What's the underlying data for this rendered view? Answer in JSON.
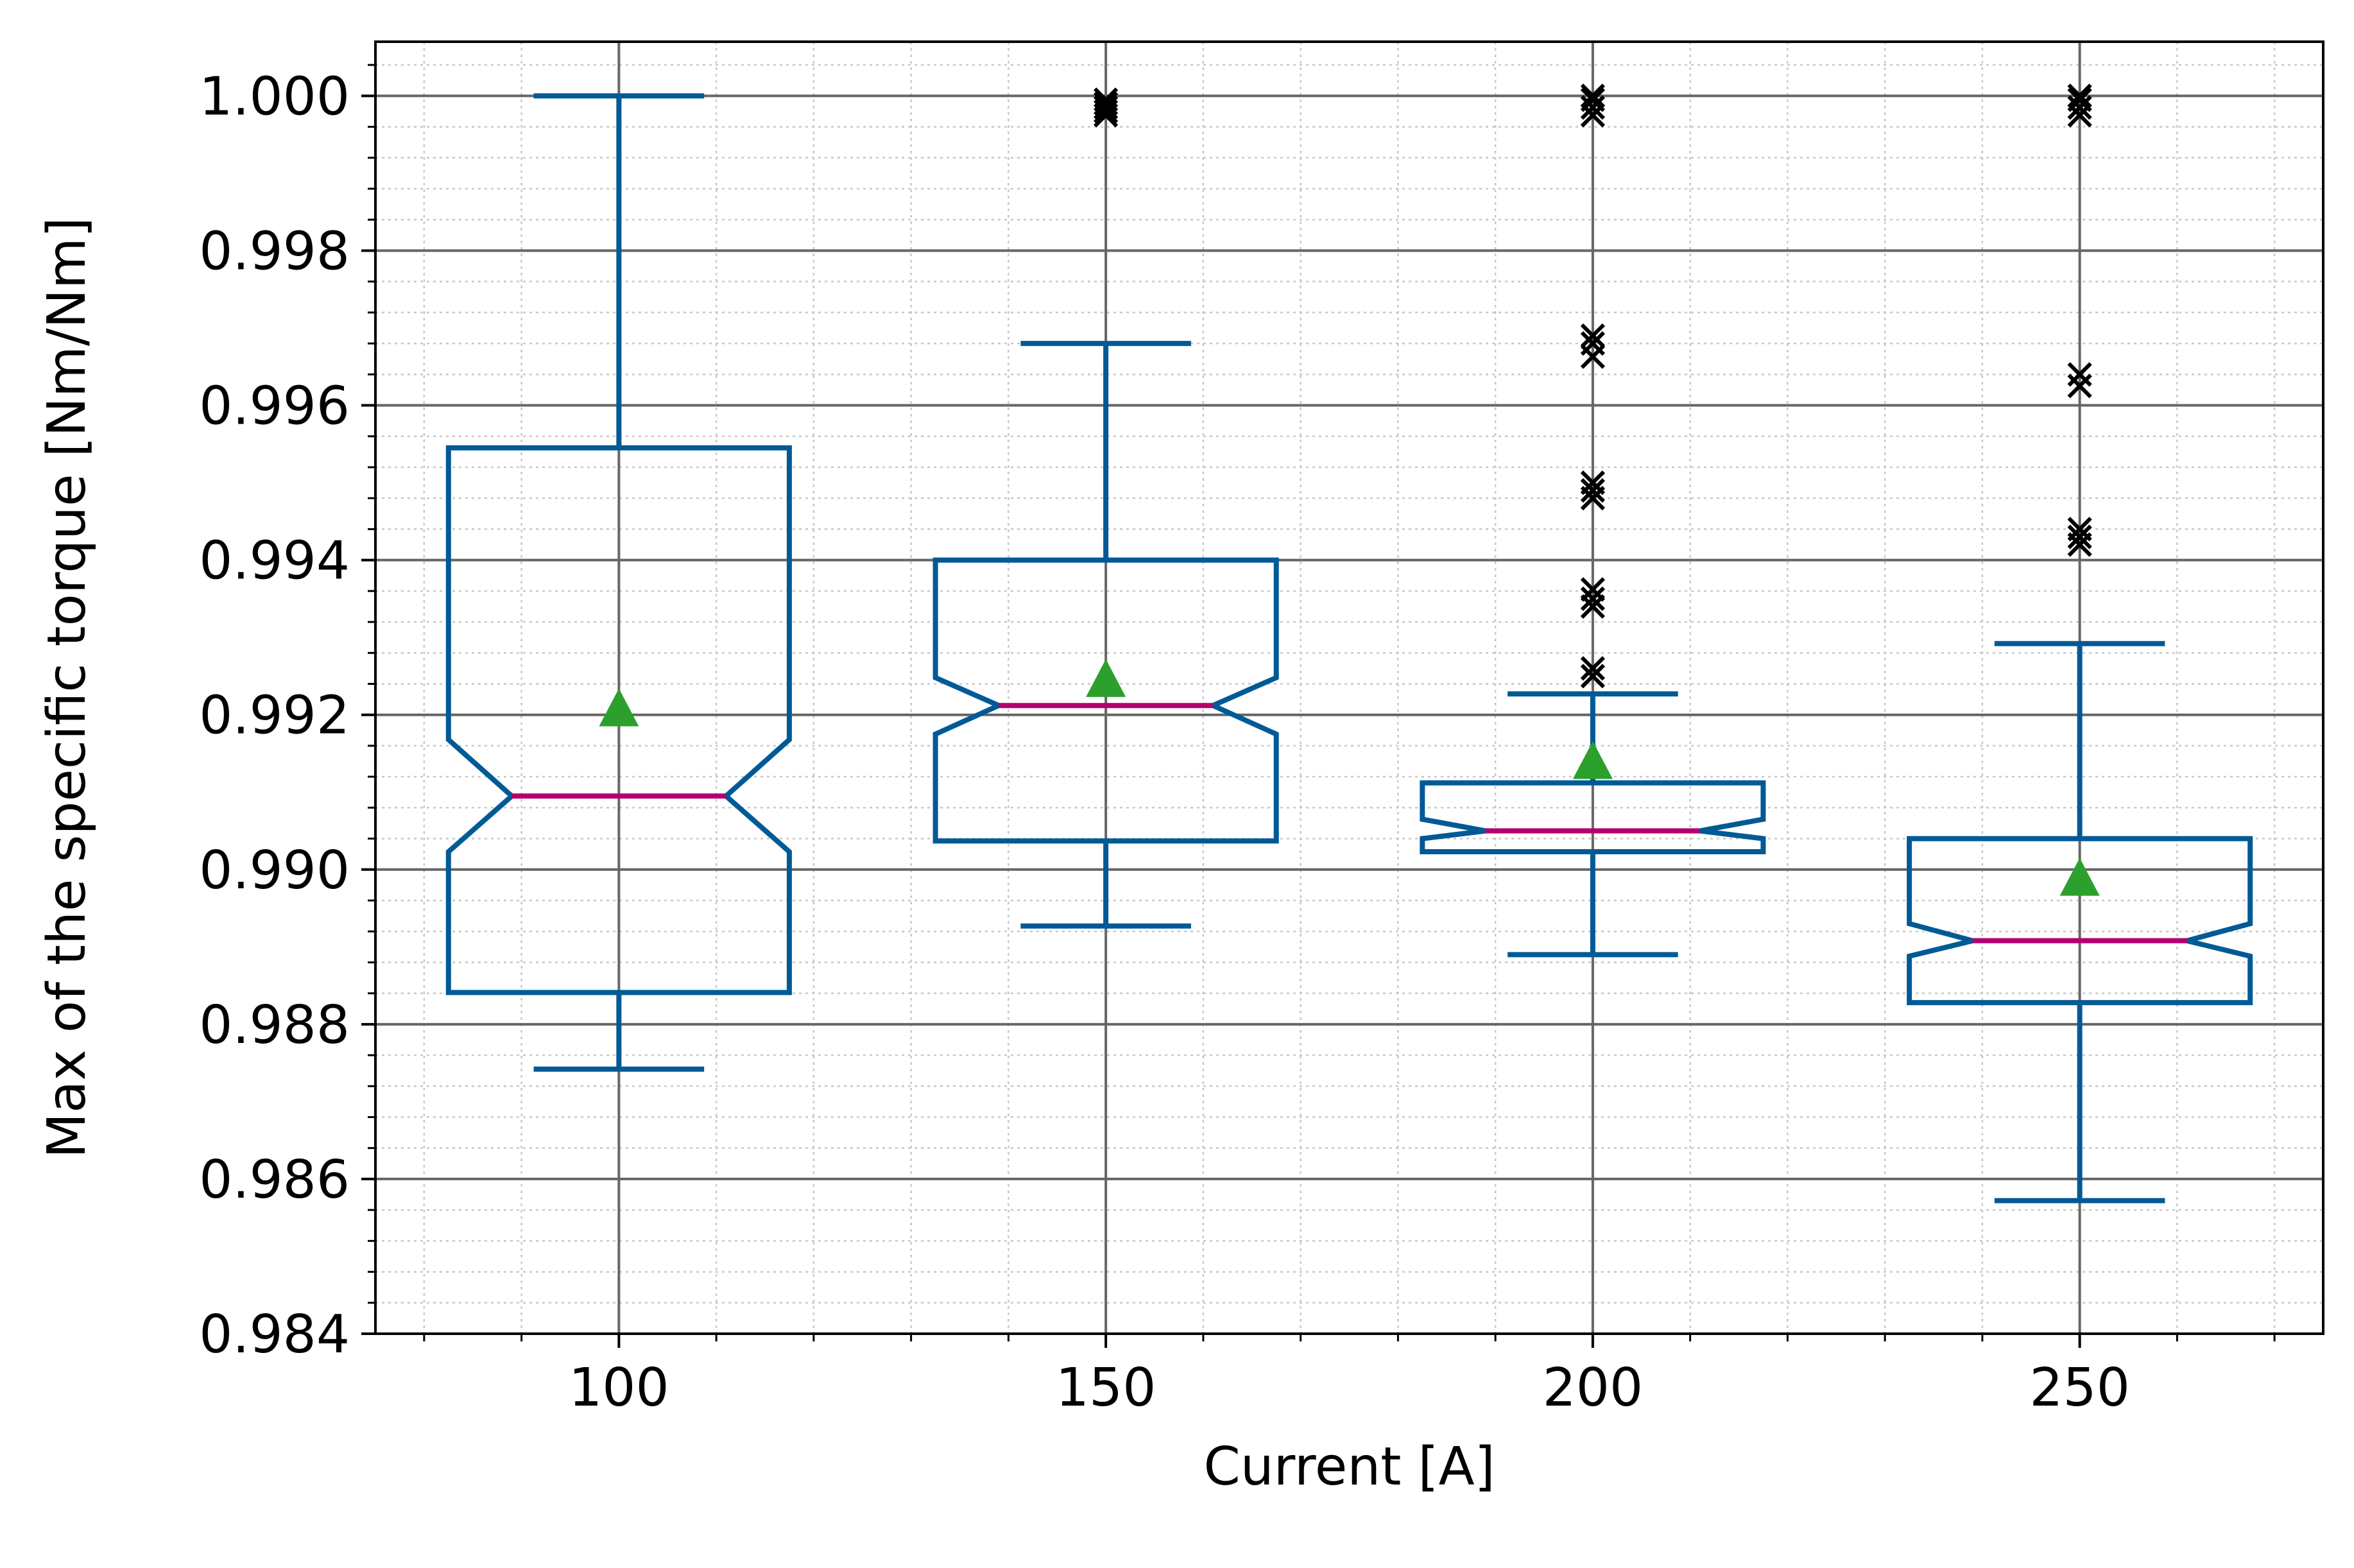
{
  "chart_data": {
    "type": "box",
    "title": "",
    "xlabel": "Current [A]",
    "ylabel": "Max of the specific torque [Nm/Nm]",
    "xlim": [
      75,
      275
    ],
    "ylim": [
      0.984,
      1.0007
    ],
    "xticks": [
      100,
      150,
      200,
      250
    ],
    "xtick_labels": [
      "100",
      "150",
      "200",
      "250"
    ],
    "xminor_step": 10,
    "yticks": [
      0.984,
      0.986,
      0.988,
      0.99,
      0.992,
      0.994,
      0.996,
      0.998,
      1.0
    ],
    "ytick_labels": [
      "0.984",
      "0.986",
      "0.988",
      "0.990",
      "0.992",
      "0.994",
      "0.996",
      "0.998",
      "1.000"
    ],
    "yminor_step": 0.0004,
    "grid": true,
    "legend": "none",
    "notched": true,
    "colors": {
      "box": "#005a96",
      "median": "#b4006e",
      "mean": "#2ca02c",
      "outlier": "#000000",
      "grid_major": "#666666",
      "grid_minor": "#c8c8c8"
    },
    "boxes": [
      {
        "x": 100,
        "whisker_low": 0.98742,
        "q1": 0.98841,
        "notch_low": 0.99023,
        "median": 0.99095,
        "notch_high": 0.99168,
        "q3": 0.99545,
        "whisker_high": 1.0,
        "mean": 0.99205,
        "outliers": []
      },
      {
        "x": 150,
        "whisker_low": 0.98927,
        "q1": 0.99037,
        "notch_low": 0.99175,
        "median": 0.99212,
        "notch_high": 0.99248,
        "q3": 0.994,
        "whisker_high": 0.9968,
        "mean": 0.99243,
        "outliers": [
          0.99975,
          0.99985,
          0.99995,
          0.9999,
          0.9998
        ]
      },
      {
        "x": 200,
        "whisker_low": 0.9889,
        "q1": 0.99023,
        "notch_low": 0.9904,
        "median": 0.9905,
        "notch_high": 0.99065,
        "q3": 0.99112,
        "whisker_high": 0.99227,
        "mean": 0.99137,
        "outliers": [
          0.9925,
          0.9926,
          0.9934,
          0.9935,
          0.99362,
          0.9948,
          0.9949,
          0.995,
          0.99663,
          0.9968,
          0.9969,
          0.99975,
          0.99985,
          0.99995,
          1.0
        ]
      },
      {
        "x": 250,
        "whisker_low": 0.98572,
        "q1": 0.98828,
        "notch_low": 0.98888,
        "median": 0.98908,
        "notch_high": 0.9893,
        "q3": 0.9904,
        "whisker_high": 0.99292,
        "mean": 0.98986,
        "outliers": [
          0.9942,
          0.9943,
          0.9944,
          0.99625,
          0.9964,
          0.99975,
          0.99985,
          0.99995,
          1.0
        ]
      }
    ]
  }
}
